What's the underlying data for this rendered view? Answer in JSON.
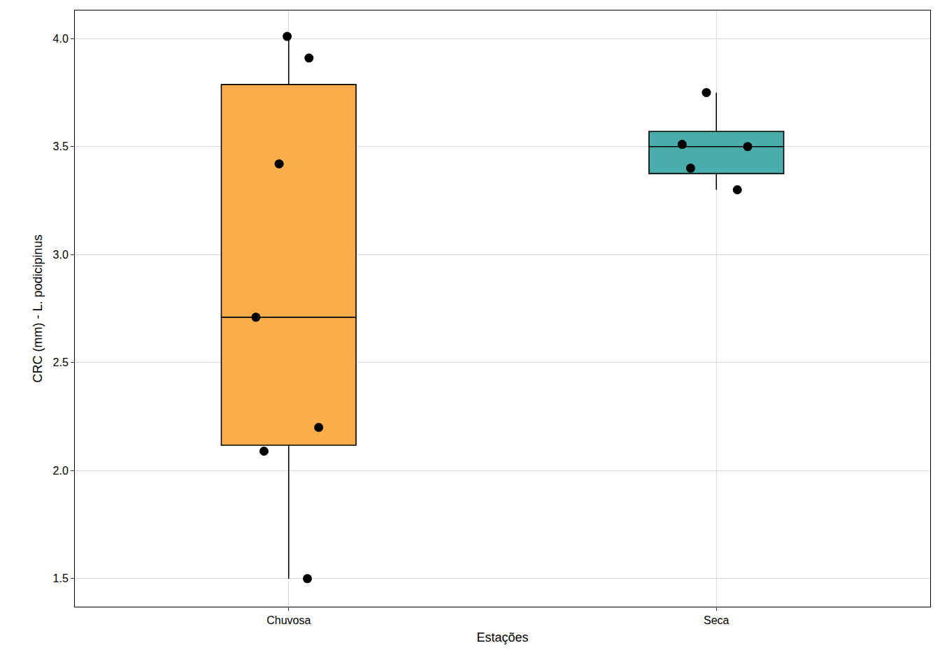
{
  "chart_data": {
    "type": "box",
    "x_label": "Estações",
    "y_label": "CRC (mm) - L. podicipinus",
    "categories": [
      "Chuvosa",
      "Seca"
    ],
    "values": [
      [
        4.01,
        3.91,
        3.42,
        2.71,
        2.2,
        2.09,
        1.5
      ],
      [
        3.75,
        3.51,
        3.5,
        3.4,
        3.3
      ]
    ],
    "colors": [
      "#FDAD4B",
      "#4AADAC"
    ],
    "marker": "circle",
    "ylim": [
      1.37,
      4.13
    ],
    "yticks": [
      {
        "value": 1.5,
        "label": "1.5"
      },
      {
        "value": 2,
        "label": "2.0"
      },
      {
        "value": 2.5,
        "label": "2.5"
      },
      {
        "value": 3,
        "label": "3.0"
      },
      {
        "value": 3.5,
        "label": "3.5"
      },
      {
        "value": 4,
        "label": "4.0"
      }
    ],
    "grid": true
  }
}
